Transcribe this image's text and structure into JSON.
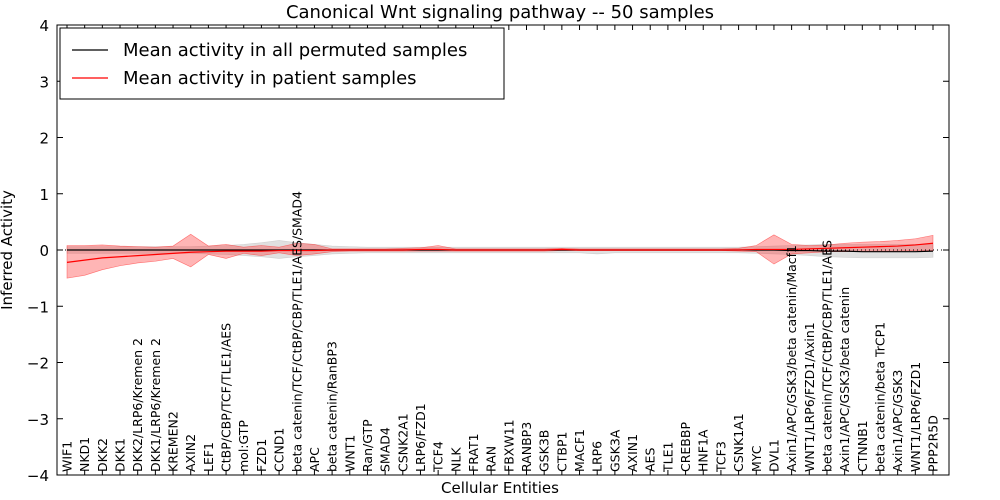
{
  "chart_data": {
    "type": "line",
    "title": "Canonical Wnt signaling pathway -- 50 samples",
    "xlabel": "Cellular Entities",
    "ylabel": "Inferred Activity",
    "ylim": [
      -4,
      4
    ],
    "yticks": [
      -4,
      -3,
      -2,
      -1,
      0,
      1,
      2,
      3,
      4
    ],
    "ytick_labels": [
      "−4",
      "−3",
      "−2",
      "−1",
      "0",
      "1",
      "2",
      "3",
      "4"
    ],
    "legend_position": "top-left",
    "categories": [
      "WIF1",
      "NKD1",
      "DKK2",
      "DKK1",
      "DKK2/LRP6/Kremen 2",
      "DKK1/LRP6/Kremen 2",
      "KREMEN2",
      "AXIN2",
      "LEF1",
      "CtBP/CBP/TCF/TLE1/AES",
      "mol:GTP",
      "FZD1",
      "CCND1",
      "beta catenin/TCF/CtBP/CBP/TLE1/AES/SMAD4",
      "APC",
      "beta catenin/RanBP3",
      "WNT1",
      "Ran/GTP",
      "SMAD4",
      "CSNK2A1",
      "LRP6/FZD1",
      "TCF4",
      "NLK",
      "FRAT1",
      "RAN",
      "FBXW11",
      "RANBP3",
      "GSK3B",
      "CTBP1",
      "MACF1",
      "LRP6",
      "GSK3A",
      "AXIN1",
      "AES",
      "TLE1",
      "CREBBP",
      "HNF1A",
      "TCF3",
      "CSNK1A1",
      "MYC",
      "DVL1",
      "Axin1/APC/GSK3/beta catenin/Macf1",
      "WNT1/LRP6/FZD1/Axin1",
      "beta catenin/TCF/CtBP/CBP/TLE1/AES",
      "Axin1/APC/GSK3/beta catenin",
      "CTNNB1",
      "beta catenin/beta TrCP1",
      "Axin1/APC/GSK3",
      "WNT1/LRP6/FZD1",
      "PPP2R5D"
    ],
    "series": [
      {
        "name": "Mean activity in all permuted samples",
        "color": "#000000",
        "values": [
          0,
          0,
          0,
          0,
          0,
          0,
          0,
          0,
          0,
          0,
          0,
          0,
          0,
          0,
          0,
          0,
          0,
          0,
          0,
          0,
          0,
          0,
          0,
          0,
          0,
          0,
          0,
          0,
          0,
          0,
          0,
          0,
          0,
          0,
          0,
          0,
          0,
          0,
          0,
          0,
          0,
          -0.01,
          -0.01,
          -0.02,
          -0.02,
          -0.03,
          -0.03,
          -0.03,
          -0.03,
          -0.02
        ],
        "band_low": [
          -0.06,
          -0.06,
          -0.06,
          -0.06,
          -0.06,
          -0.06,
          -0.06,
          -0.06,
          -0.07,
          -0.08,
          -0.1,
          -0.12,
          -0.15,
          -0.12,
          -0.1,
          -0.07,
          -0.06,
          -0.05,
          -0.05,
          -0.05,
          -0.05,
          -0.05,
          -0.05,
          -0.05,
          -0.05,
          -0.05,
          -0.05,
          -0.05,
          -0.05,
          -0.05,
          -0.07,
          -0.05,
          -0.05,
          -0.05,
          -0.05,
          -0.05,
          -0.05,
          -0.05,
          -0.05,
          -0.06,
          -0.07,
          -0.08,
          -0.1,
          -0.12,
          -0.13,
          -0.14,
          -0.14,
          -0.14,
          -0.14,
          -0.13
        ],
        "band_high": [
          0.06,
          0.06,
          0.06,
          0.06,
          0.06,
          0.06,
          0.06,
          0.06,
          0.07,
          0.08,
          0.1,
          0.13,
          0.17,
          0.13,
          0.1,
          0.07,
          0.06,
          0.05,
          0.05,
          0.05,
          0.05,
          0.05,
          0.05,
          0.05,
          0.05,
          0.05,
          0.05,
          0.05,
          0.05,
          0.05,
          0.05,
          0.05,
          0.05,
          0.05,
          0.05,
          0.05,
          0.05,
          0.05,
          0.05,
          0.06,
          0.07,
          0.08,
          0.09,
          0.1,
          0.1,
          0.1,
          0.1,
          0.1,
          0.1,
          0.1
        ]
      },
      {
        "name": "Mean activity in patient samples",
        "color": "#ff0000",
        "values": [
          -0.22,
          -0.18,
          -0.14,
          -0.12,
          -0.1,
          -0.08,
          -0.06,
          -0.04,
          -0.03,
          -0.02,
          -0.02,
          -0.02,
          -0.01,
          -0.01,
          -0.01,
          0,
          0,
          0,
          0,
          0,
          0.01,
          0.01,
          0,
          0,
          0,
          0,
          0,
          0,
          0.01,
          0,
          0,
          0,
          0,
          0,
          0,
          0,
          0,
          0,
          0,
          0.01,
          0.01,
          0.01,
          0.02,
          0.03,
          0.04,
          0.05,
          0.06,
          0.07,
          0.09,
          0.12
        ],
        "band_low": [
          -0.5,
          -0.45,
          -0.35,
          -0.28,
          -0.23,
          -0.2,
          -0.15,
          -0.3,
          -0.08,
          -0.15,
          -0.06,
          -0.1,
          -0.05,
          -0.1,
          -0.07,
          -0.03,
          -0.02,
          -0.02,
          -0.02,
          -0.02,
          -0.02,
          -0.02,
          -0.02,
          -0.02,
          -0.02,
          -0.02,
          -0.02,
          -0.02,
          -0.01,
          -0.01,
          -0.01,
          -0.01,
          -0.01,
          -0.01,
          -0.01,
          -0.01,
          -0.01,
          -0.01,
          -0.02,
          -0.03,
          -0.25,
          -0.07,
          -0.05,
          -0.03,
          -0.03,
          -0.02,
          -0.02,
          -0.02,
          -0.01,
          -0.01
        ],
        "band_high": [
          0.08,
          0.08,
          0.09,
          0.07,
          0.06,
          0.05,
          0.07,
          0.28,
          0.07,
          0.1,
          0.05,
          0.08,
          0.05,
          0.12,
          0.1,
          0.02,
          0.02,
          0.02,
          0.02,
          0.03,
          0.04,
          0.08,
          0.02,
          0.02,
          0.02,
          0.02,
          0.02,
          0.02,
          0.03,
          0.02,
          0.02,
          0.02,
          0.02,
          0.02,
          0.02,
          0.02,
          0.02,
          0.02,
          0.03,
          0.08,
          0.27,
          0.1,
          0.08,
          0.09,
          0.12,
          0.14,
          0.15,
          0.17,
          0.2,
          0.26
        ]
      }
    ]
  }
}
